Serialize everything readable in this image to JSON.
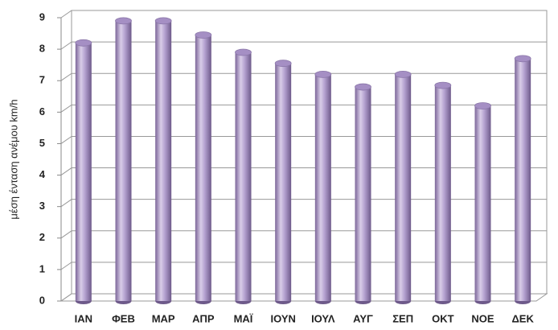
{
  "chart_data": {
    "type": "bar",
    "y_label": "μέση ένταση ανέμου km/h",
    "categories": [
      "ΙΑΝ",
      "ΦΕΒ",
      "ΜΑΡ",
      "ΑΠΡ",
      "ΜΑΪ",
      "ΙΟΥΝ",
      "ΙΟΥΛ",
      "ΑΥΓ",
      "ΣΕΠ",
      "ΟΚΤ",
      "ΝΟΕ",
      "ΔΕΚ"
    ],
    "values": [
      8.2,
      8.9,
      8.9,
      8.45,
      7.9,
      7.55,
      7.2,
      6.8,
      7.2,
      6.85,
      6.2,
      7.7
    ],
    "color": "#a58fc4",
    "ylim": [
      0,
      9
    ],
    "yticks": [
      0,
      1,
      2,
      3,
      4,
      5,
      6,
      7,
      8,
      9
    ],
    "grid": true
  }
}
